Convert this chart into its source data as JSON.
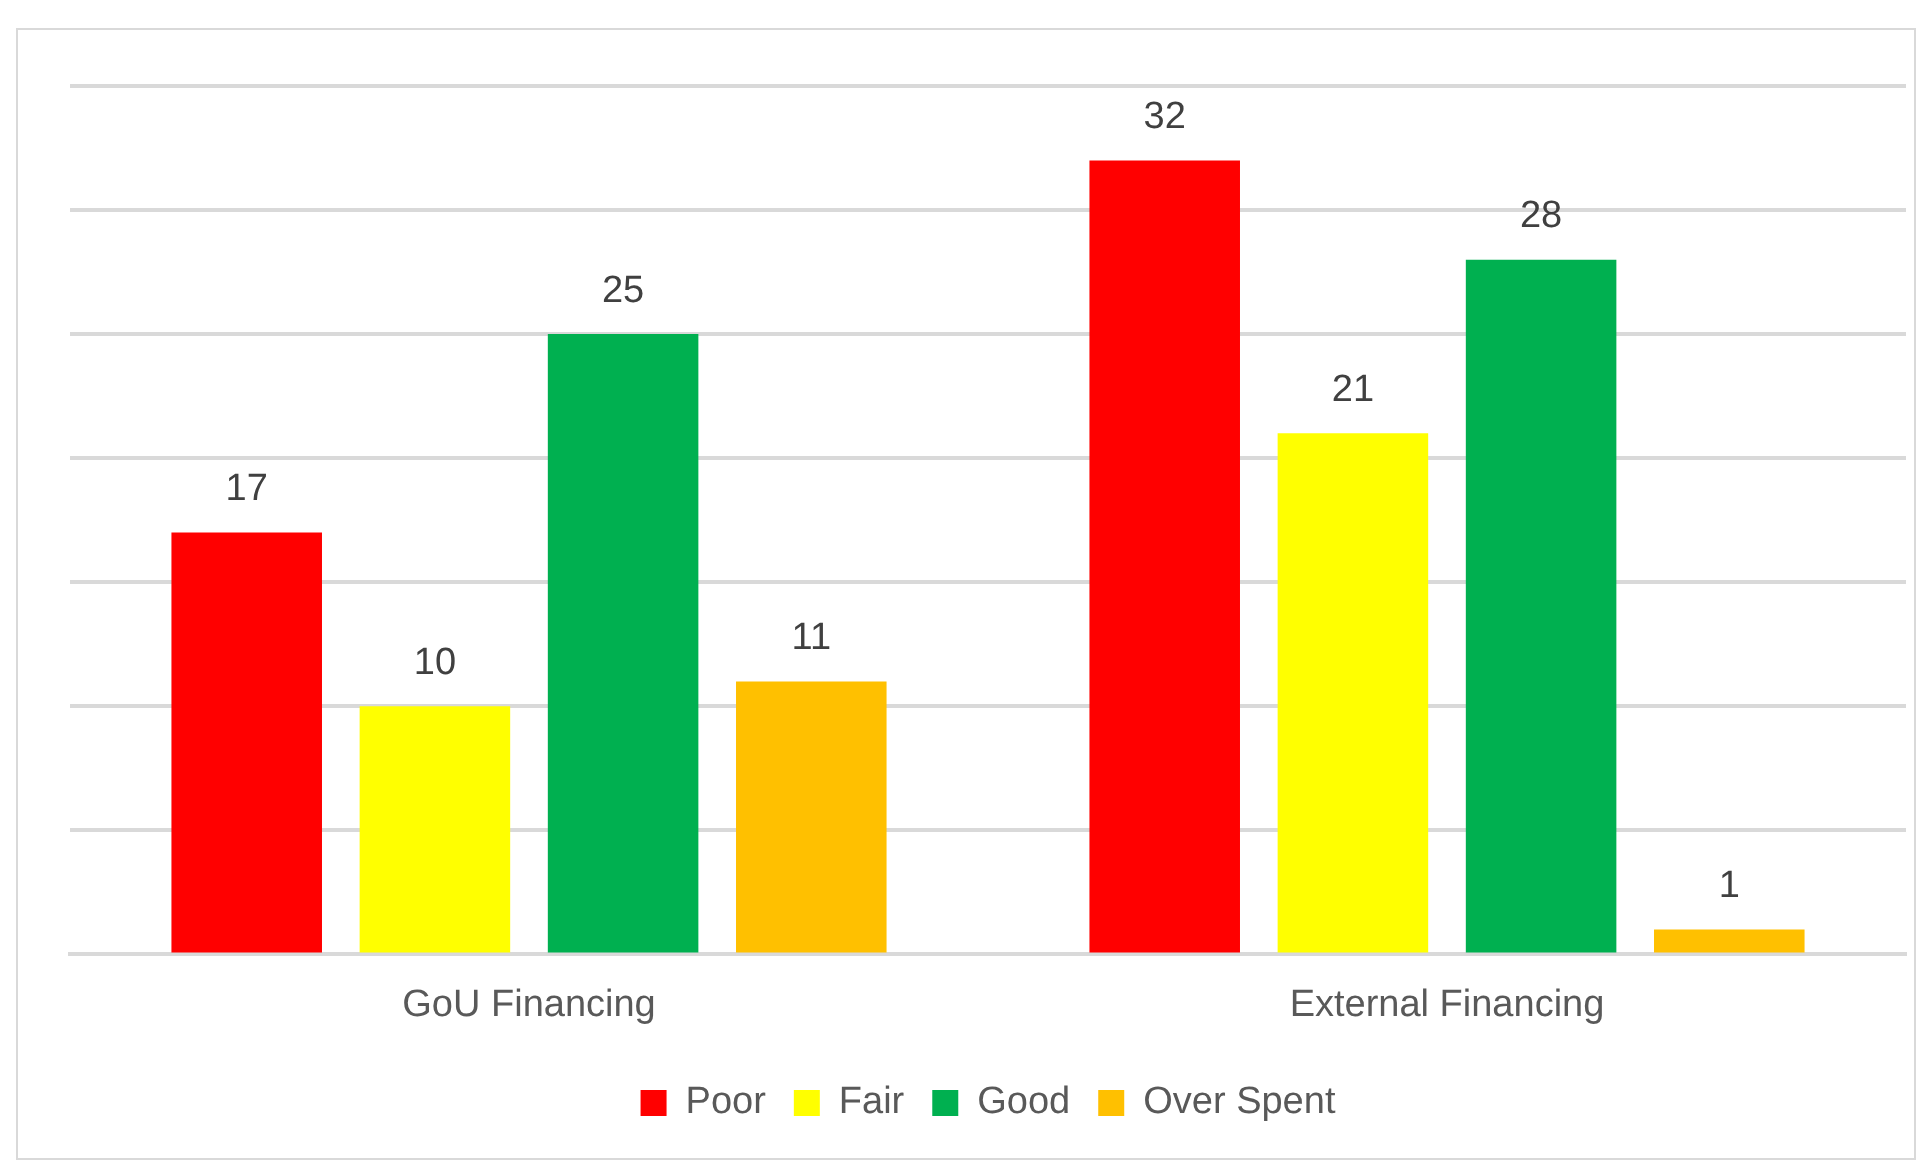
{
  "chart_data": {
    "type": "bar",
    "categories": [
      "GoU Financing",
      "External Financing"
    ],
    "series": [
      {
        "name": "Poor",
        "color": "#ff0000",
        "values": [
          17,
          32
        ]
      },
      {
        "name": "Fair",
        "color": "#ffff00",
        "values": [
          10,
          21
        ]
      },
      {
        "name": "Good",
        "color": "#00b050",
        "values": [
          25,
          28
        ]
      },
      {
        "name": "Over Spent",
        "color": "#ffc000",
        "values": [
          11,
          1
        ]
      }
    ],
    "ylim": [
      0,
      35
    ],
    "yticks": [
      {
        "value": 0,
        "label": null
      },
      {
        "value": 5,
        "label": null
      },
      {
        "value": 10,
        "label": null
      },
      {
        "value": 15,
        "label": null
      },
      {
        "value": 20,
        "label": null
      },
      {
        "value": 25,
        "label": null
      },
      {
        "value": 30,
        "label": null
      },
      {
        "value": 35,
        "label": null
      }
    ],
    "grid": "y",
    "legend": "bottom",
    "tick_labels": "x",
    "data_labels": true
  }
}
